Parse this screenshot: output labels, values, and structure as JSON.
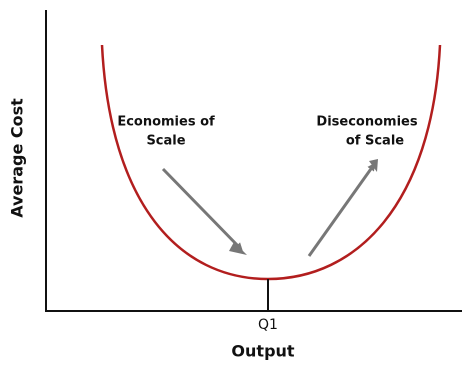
{
  "axes": {
    "y_label": "Average Cost",
    "x_label": "Output",
    "x_marker": "Q1"
  },
  "annotations": [
    {
      "lines": [
        "Economies of",
        "Scale"
      ]
    },
    {
      "lines": [
        "Diseconomies",
        "of Scale"
      ]
    }
  ]
}
